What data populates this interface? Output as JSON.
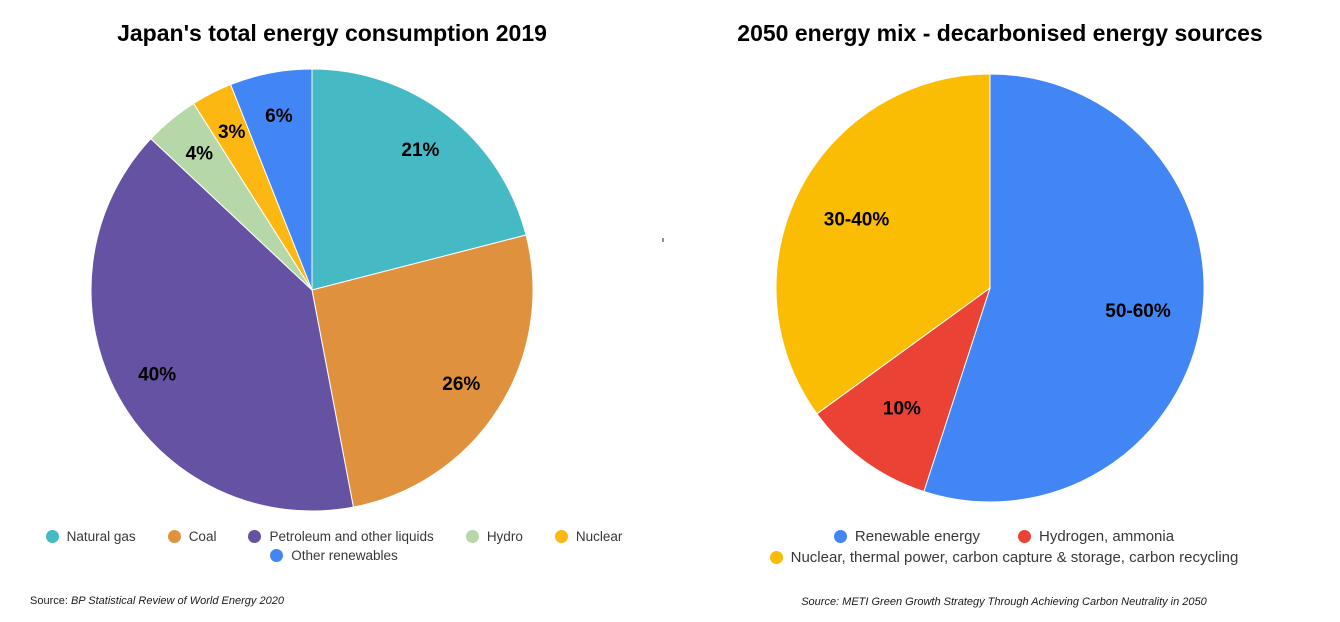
{
  "chart_data": [
    {
      "type": "pie",
      "title": "Japan's total energy consumption 2019",
      "start_angle_deg": 0,
      "direction": "clockwise",
      "labels": "percent",
      "legend_position": "bottom",
      "slices": [
        {
          "label": "Natural gas",
          "value": 21,
          "display_label": "21%",
          "color": "#45b9c4"
        },
        {
          "label": "Coal",
          "value": 26,
          "display_label": "26%",
          "color": "#e0913e"
        },
        {
          "label": "Petroleum and other liquids",
          "value": 40,
          "display_label": "40%",
          "color": "#6552a3"
        },
        {
          "label": "Hydro",
          "value": 4,
          "display_label": "4%",
          "color": "#b6d7a8"
        },
        {
          "label": "Nuclear",
          "value": 3,
          "display_label": "3%",
          "color": "#fcb713"
        },
        {
          "label": "Other renewables",
          "value": 6,
          "display_label": "6%",
          "color": "#4285f4"
        }
      ],
      "legend_rows": [
        [
          0,
          1,
          2,
          3,
          4
        ],
        [
          5
        ]
      ],
      "source": {
        "prefix": "Source: ",
        "text": "BP Statistical Review of World Energy 2020"
      }
    },
    {
      "type": "pie",
      "title": "2050 energy mix - decarbonised energy sources",
      "start_angle_deg": 0,
      "direction": "clockwise",
      "labels": "percent-range",
      "legend_position": "bottom",
      "slices": [
        {
          "label": "Renewable energy",
          "value": 55,
          "display_label": "50-60%",
          "color": "#4285f4"
        },
        {
          "label": "Hydrogen, ammonia",
          "value": 10,
          "display_label": "10%",
          "color": "#ea4335"
        },
        {
          "label": "Nuclear, thermal power, carbon capture & storage, carbon recycling",
          "value": 35,
          "display_label": "30-40%",
          "color": "#fbbc04"
        }
      ],
      "legend_rows": [
        [
          0,
          1
        ],
        [
          2
        ]
      ],
      "source": {
        "prefix": "Source: ",
        "text": "METI Green Growth Strategy Through Achieving Carbon Neutrality in 2050"
      }
    }
  ]
}
